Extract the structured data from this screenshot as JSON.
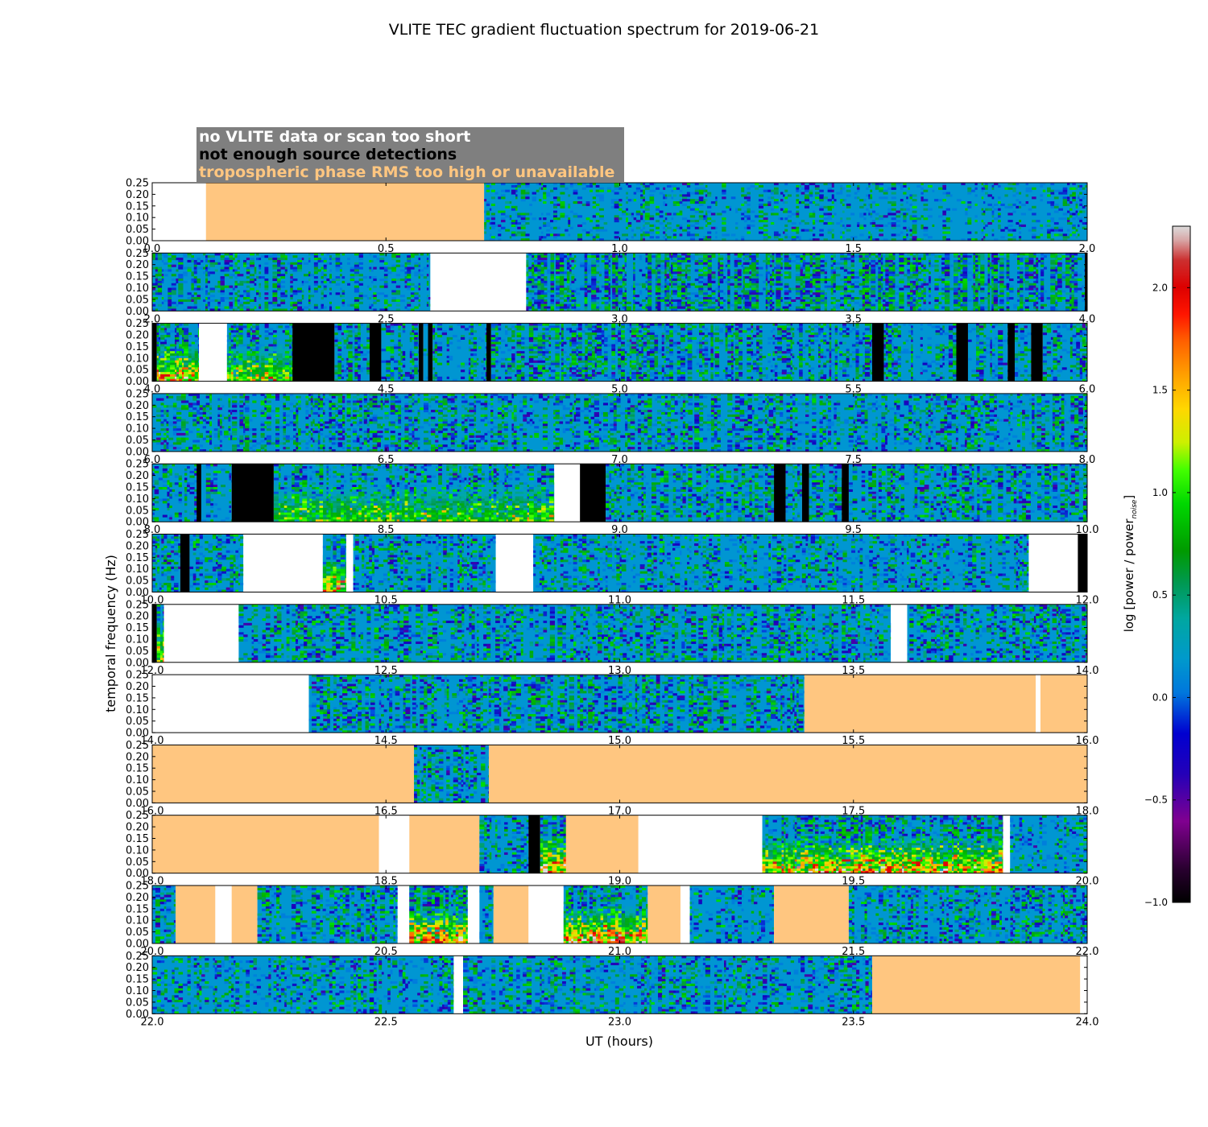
{
  "chart_data": {
    "type": "heatmap",
    "title": "VLITE TEC gradient fluctuation spectrum for 2019-06-21",
    "xlabel": "UT (hours)",
    "ylabel": "temporal frequency (Hz)",
    "ylim": [
      0,
      0.25
    ],
    "y_ticks": [
      "0.00",
      "0.05",
      "0.10",
      "0.15",
      "0.20",
      "0.25"
    ],
    "legend": {
      "placement": "top-left",
      "entries": [
        {
          "label": "no VLITE data or scan too short",
          "color": "#ffffff"
        },
        {
          "label": "not enough source detections",
          "color": "#000000"
        },
        {
          "label": "tropospheric phase RMS too high or unavailable",
          "color": "#ffc680"
        }
      ]
    },
    "colorbar": {
      "label_main": "log [power / power",
      "label_sub": "noise",
      "label_close": "]",
      "range": [
        -1.0,
        2.3
      ],
      "ticks": [
        {
          "value": -1.0,
          "label": "−1.0"
        },
        {
          "value": -0.5,
          "label": "−0.5"
        },
        {
          "value": 0.0,
          "label": "0.0"
        },
        {
          "value": 0.5,
          "label": "0.5"
        },
        {
          "value": 1.0,
          "label": "1.0"
        },
        {
          "value": 1.5,
          "label": "1.5"
        },
        {
          "value": 2.0,
          "label": "2.0"
        }
      ]
    },
    "panels": [
      {
        "xlim": [
          0,
          2
        ],
        "x_ticks": [
          "0.0",
          "0.5",
          "1.0",
          "1.5",
          "2.0"
        ],
        "segments": [
          {
            "start": 0.0,
            "end": 0.115,
            "status": "no_data"
          },
          {
            "start": 0.115,
            "end": 0.71,
            "status": "troposphere"
          },
          {
            "start": 0.71,
            "end": 2.0,
            "status": "data",
            "activity": 0.35
          }
        ]
      },
      {
        "xlim": [
          2,
          4
        ],
        "x_ticks": [
          "2.0",
          "2.5",
          "3.0",
          "3.5",
          "4.0"
        ],
        "segments": [
          {
            "start": 2.0,
            "end": 2.595,
            "status": "data",
            "activity": 0.5
          },
          {
            "start": 2.595,
            "end": 2.8,
            "status": "no_data"
          },
          {
            "start": 2.8,
            "end": 3.995,
            "status": "data",
            "activity": 0.85
          },
          {
            "start": 3.995,
            "end": 4.0,
            "status": "few_detections"
          }
        ]
      },
      {
        "xlim": [
          4,
          6
        ],
        "x_ticks": [
          "4.0",
          "4.5",
          "5.0",
          "5.5",
          "6.0"
        ],
        "segments": [
          {
            "start": 4.0,
            "end": 4.01,
            "status": "few_detections"
          },
          {
            "start": 4.01,
            "end": 4.1,
            "status": "data",
            "activity": 0.8,
            "hot": 1.6
          },
          {
            "start": 4.1,
            "end": 4.16,
            "status": "no_data"
          },
          {
            "start": 4.16,
            "end": 4.3,
            "status": "data",
            "activity": 0.8,
            "hot": 1.0
          },
          {
            "start": 4.3,
            "end": 4.39,
            "status": "few_detections"
          },
          {
            "start": 4.39,
            "end": 4.465,
            "status": "data",
            "activity": 0.6
          },
          {
            "start": 4.465,
            "end": 4.49,
            "status": "few_detections"
          },
          {
            "start": 4.49,
            "end": 4.57,
            "status": "data",
            "activity": 0.6
          },
          {
            "start": 4.57,
            "end": 4.58,
            "status": "few_detections"
          },
          {
            "start": 4.58,
            "end": 4.59,
            "status": "data",
            "activity": 0.6
          },
          {
            "start": 4.59,
            "end": 4.6,
            "status": "few_detections"
          },
          {
            "start": 4.6,
            "end": 4.715,
            "status": "data",
            "activity": 0.6
          },
          {
            "start": 4.715,
            "end": 4.725,
            "status": "few_detections"
          },
          {
            "start": 4.725,
            "end": 5.54,
            "status": "data",
            "activity": 0.75
          },
          {
            "start": 5.54,
            "end": 5.565,
            "status": "few_detections"
          },
          {
            "start": 5.565,
            "end": 5.72,
            "status": "data",
            "activity": 0.6
          },
          {
            "start": 5.72,
            "end": 5.745,
            "status": "few_detections"
          },
          {
            "start": 5.745,
            "end": 5.83,
            "status": "data",
            "activity": 0.6
          },
          {
            "start": 5.83,
            "end": 5.845,
            "status": "few_detections"
          },
          {
            "start": 5.845,
            "end": 5.88,
            "status": "data",
            "activity": 0.6
          },
          {
            "start": 5.88,
            "end": 5.905,
            "status": "few_detections"
          },
          {
            "start": 5.905,
            "end": 6.0,
            "status": "data",
            "activity": 0.6
          }
        ]
      },
      {
        "xlim": [
          6,
          8
        ],
        "x_ticks": [
          "6.0",
          "6.5",
          "7.0",
          "7.5",
          "8.0"
        ],
        "segments": [
          {
            "start": 6.0,
            "end": 8.0,
            "status": "data",
            "activity": 0.6
          }
        ]
      },
      {
        "xlim": [
          8,
          10
        ],
        "x_ticks": [
          "8.0",
          "8.5",
          "9.0",
          "9.5",
          "10.0"
        ],
        "segments": [
          {
            "start": 8.0,
            "end": 8.095,
            "status": "data",
            "activity": 0.5
          },
          {
            "start": 8.095,
            "end": 8.105,
            "status": "few_detections"
          },
          {
            "start": 8.105,
            "end": 8.17,
            "status": "data",
            "activity": 0.5
          },
          {
            "start": 8.17,
            "end": 8.26,
            "status": "few_detections"
          },
          {
            "start": 8.26,
            "end": 8.86,
            "status": "data",
            "activity": 0.6,
            "hot": 0.8
          },
          {
            "start": 8.86,
            "end": 8.915,
            "status": "no_data"
          },
          {
            "start": 8.915,
            "end": 8.97,
            "status": "few_detections"
          },
          {
            "start": 8.97,
            "end": 9.33,
            "status": "data",
            "activity": 0.6
          },
          {
            "start": 9.33,
            "end": 9.355,
            "status": "few_detections"
          },
          {
            "start": 9.355,
            "end": 9.39,
            "status": "data",
            "activity": 0.5
          },
          {
            "start": 9.39,
            "end": 9.405,
            "status": "few_detections"
          },
          {
            "start": 9.405,
            "end": 9.475,
            "status": "data",
            "activity": 0.5
          },
          {
            "start": 9.475,
            "end": 9.49,
            "status": "few_detections"
          },
          {
            "start": 9.49,
            "end": 10.0,
            "status": "data",
            "activity": 0.6
          }
        ]
      },
      {
        "xlim": [
          10,
          12
        ],
        "x_ticks": [
          "10.0",
          "10.5",
          "11.0",
          "11.5",
          "12.0"
        ],
        "segments": [
          {
            "start": 10.0,
            "end": 10.06,
            "status": "data",
            "activity": 0.5
          },
          {
            "start": 10.06,
            "end": 10.08,
            "status": "few_detections"
          },
          {
            "start": 10.08,
            "end": 10.195,
            "status": "data",
            "activity": 0.55
          },
          {
            "start": 10.195,
            "end": 10.365,
            "status": "no_data"
          },
          {
            "start": 10.365,
            "end": 10.415,
            "status": "data",
            "activity": 0.8,
            "hot": 1.4
          },
          {
            "start": 10.415,
            "end": 10.43,
            "status": "no_data"
          },
          {
            "start": 10.43,
            "end": 10.735,
            "status": "data",
            "activity": 0.55
          },
          {
            "start": 10.735,
            "end": 10.815,
            "status": "no_data"
          },
          {
            "start": 10.815,
            "end": 11.875,
            "status": "data",
            "activity": 0.45
          },
          {
            "start": 11.875,
            "end": 11.98,
            "status": "no_data"
          },
          {
            "start": 11.98,
            "end": 12.0,
            "status": "few_detections"
          }
        ]
      },
      {
        "xlim": [
          12,
          14
        ],
        "x_ticks": [
          "12.0",
          "12.5",
          "13.0",
          "13.5",
          "14.0"
        ],
        "segments": [
          {
            "start": 12.0,
            "end": 12.01,
            "status": "few_detections"
          },
          {
            "start": 12.01,
            "end": 12.025,
            "status": "data",
            "activity": 0.9,
            "hot": 1.2
          },
          {
            "start": 12.025,
            "end": 12.185,
            "status": "no_data"
          },
          {
            "start": 12.185,
            "end": 13.58,
            "status": "data",
            "activity": 0.55
          },
          {
            "start": 13.58,
            "end": 13.615,
            "status": "no_data"
          },
          {
            "start": 13.615,
            "end": 14.0,
            "status": "data",
            "activity": 0.55
          }
        ]
      },
      {
        "xlim": [
          14,
          16
        ],
        "x_ticks": [
          "14.0",
          "14.5",
          "15.0",
          "15.5",
          "16.0"
        ],
        "segments": [
          {
            "start": 14.0,
            "end": 14.335,
            "status": "no_data"
          },
          {
            "start": 14.335,
            "end": 15.395,
            "status": "data",
            "activity": 0.6
          },
          {
            "start": 15.395,
            "end": 15.89,
            "status": "troposphere"
          },
          {
            "start": 15.89,
            "end": 15.9,
            "status": "no_data"
          },
          {
            "start": 15.9,
            "end": 16.0,
            "status": "troposphere"
          }
        ]
      },
      {
        "xlim": [
          16,
          18
        ],
        "x_ticks": [
          "16.0",
          "16.5",
          "17.0",
          "17.5",
          "18.0"
        ],
        "segments": [
          {
            "start": 16.0,
            "end": 16.56,
            "status": "troposphere"
          },
          {
            "start": 16.56,
            "end": 16.72,
            "status": "data",
            "activity": 0.5
          },
          {
            "start": 16.72,
            "end": 18.0,
            "status": "troposphere"
          }
        ]
      },
      {
        "xlim": [
          18,
          20
        ],
        "x_ticks": [
          "18.0",
          "18.5",
          "19.0",
          "19.5",
          "20.0"
        ],
        "segments": [
          {
            "start": 18.0,
            "end": 18.485,
            "status": "troposphere"
          },
          {
            "start": 18.485,
            "end": 18.55,
            "status": "no_data"
          },
          {
            "start": 18.55,
            "end": 18.7,
            "status": "troposphere"
          },
          {
            "start": 18.7,
            "end": 18.805,
            "status": "data",
            "activity": 0.5
          },
          {
            "start": 18.805,
            "end": 18.83,
            "status": "few_detections"
          },
          {
            "start": 18.83,
            "end": 18.885,
            "status": "data",
            "activity": 0.9,
            "hot": 1.6
          },
          {
            "start": 18.885,
            "end": 19.04,
            "status": "troposphere"
          },
          {
            "start": 19.04,
            "end": 19.305,
            "status": "no_data"
          },
          {
            "start": 19.305,
            "end": 19.82,
            "status": "data",
            "activity": 0.85,
            "hot": 1.5
          },
          {
            "start": 19.82,
            "end": 19.835,
            "status": "no_data"
          },
          {
            "start": 19.835,
            "end": 20.0,
            "status": "data",
            "activity": 0.3
          }
        ]
      },
      {
        "xlim": [
          20,
          22
        ],
        "x_ticks": [
          "20.0",
          "20.5",
          "21.0",
          "21.5",
          "22.0"
        ],
        "segments": [
          {
            "start": 20.0,
            "end": 20.05,
            "status": "data",
            "activity": 0.6
          },
          {
            "start": 20.05,
            "end": 20.135,
            "status": "troposphere"
          },
          {
            "start": 20.135,
            "end": 20.17,
            "status": "no_data"
          },
          {
            "start": 20.17,
            "end": 20.225,
            "status": "troposphere"
          },
          {
            "start": 20.225,
            "end": 20.525,
            "status": "data",
            "activity": 0.55
          },
          {
            "start": 20.525,
            "end": 20.55,
            "status": "no_data"
          },
          {
            "start": 20.55,
            "end": 20.675,
            "status": "data",
            "activity": 0.95,
            "hot": 1.5
          },
          {
            "start": 20.675,
            "end": 20.7,
            "status": "no_data"
          },
          {
            "start": 20.7,
            "end": 20.73,
            "status": "data",
            "activity": 0.5
          },
          {
            "start": 20.73,
            "end": 20.805,
            "status": "troposphere"
          },
          {
            "start": 20.805,
            "end": 20.88,
            "status": "no_data"
          },
          {
            "start": 20.88,
            "end": 21.06,
            "status": "data",
            "activity": 0.85,
            "hot": 1.6
          },
          {
            "start": 21.06,
            "end": 21.13,
            "status": "troposphere"
          },
          {
            "start": 21.13,
            "end": 21.15,
            "status": "no_data"
          },
          {
            "start": 21.15,
            "end": 21.33,
            "status": "data",
            "activity": 0.4
          },
          {
            "start": 21.33,
            "end": 21.49,
            "status": "troposphere"
          },
          {
            "start": 21.49,
            "end": 22.0,
            "status": "data",
            "activity": 0.55
          }
        ]
      },
      {
        "xlim": [
          22,
          24
        ],
        "x_ticks": [
          "22.0",
          "22.5",
          "23.0",
          "23.5",
          "24.0"
        ],
        "segments": [
          {
            "start": 22.0,
            "end": 22.645,
            "status": "data",
            "activity": 0.5
          },
          {
            "start": 22.645,
            "end": 22.665,
            "status": "no_data"
          },
          {
            "start": 22.665,
            "end": 23.54,
            "status": "data",
            "activity": 0.5
          },
          {
            "start": 23.54,
            "end": 23.985,
            "status": "troposphere"
          },
          {
            "start": 23.985,
            "end": 24.0,
            "status": "no_data"
          }
        ]
      }
    ]
  }
}
